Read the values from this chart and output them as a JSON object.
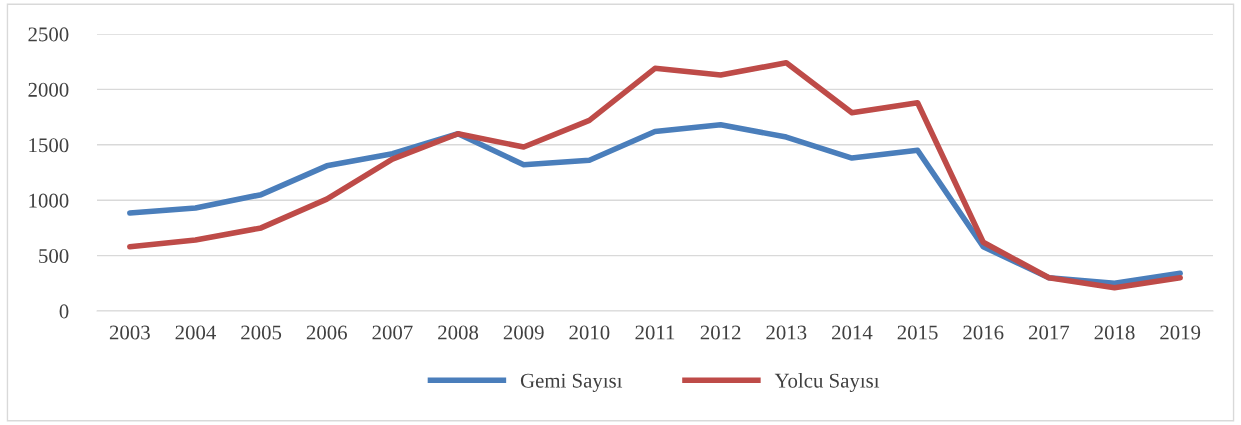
{
  "chart_data": {
    "type": "line",
    "categories": [
      "2003",
      "2004",
      "2005",
      "2006",
      "2007",
      "2008",
      "2009",
      "2010",
      "2011",
      "2012",
      "2013",
      "2014",
      "2015",
      "2016",
      "2017",
      "2018",
      "2019"
    ],
    "series": [
      {
        "name": "Gemi Sayısı",
        "color": "#4a7ebb",
        "values": [
          885,
          930,
          1050,
          1310,
          1420,
          1600,
          1320,
          1360,
          1620,
          1680,
          1570,
          1380,
          1450,
          580,
          300,
          250,
          340
        ]
      },
      {
        "name": "Yolcu Sayısı",
        "color": "#be4b48",
        "values": [
          580,
          640,
          750,
          1010,
          1370,
          1600,
          1480,
          1720,
          2190,
          2130,
          2240,
          1790,
          1880,
          620,
          300,
          210,
          300
        ]
      }
    ],
    "ylim": [
      0,
      2500
    ],
    "yticks": [
      0,
      500,
      1000,
      1500,
      2000,
      2500
    ],
    "grid": "y",
    "legend": "bottom",
    "marker": "none",
    "line_style": "solid"
  }
}
